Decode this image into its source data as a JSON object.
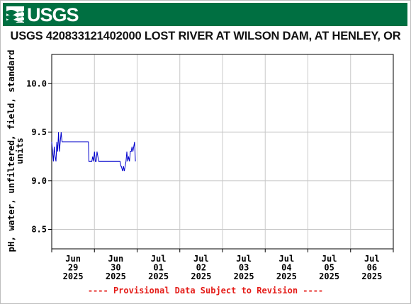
{
  "header": {
    "agency": "USGS",
    "logo_icon": "usgs-wave-logo-icon",
    "bg_color": "#006f41"
  },
  "chart_data": {
    "type": "line",
    "title": "USGS 420833121402000 LOST RIVER AT WILSON DAM, AT HENLEY, OR",
    "ylabel": "pH, water, unfiltered, field, standard units",
    "xlabel": "",
    "ylim": [
      8.3,
      10.3
    ],
    "yticks": [
      {
        "value": 8.5,
        "label": "8.5"
      },
      {
        "value": 9.0,
        "label": "9.0"
      },
      {
        "value": 9.5,
        "label": "9.5"
      },
      {
        "value": 10.0,
        "label": "10.0"
      }
    ],
    "xlim_days": [
      0,
      8
    ],
    "xticks": [
      {
        "day": 0.5,
        "month": "Jun",
        "date": "29",
        "year": "2025"
      },
      {
        "day": 1.5,
        "month": "Jun",
        "date": "30",
        "year": "2025"
      },
      {
        "day": 2.5,
        "month": "Jul",
        "date": "01",
        "year": "2025"
      },
      {
        "day": 3.5,
        "month": "Jul",
        "date": "02",
        "year": "2025"
      },
      {
        "day": 4.5,
        "month": "Jul",
        "date": "03",
        "year": "2025"
      },
      {
        "day": 5.5,
        "month": "Jul",
        "date": "04",
        "year": "2025"
      },
      {
        "day": 6.5,
        "month": "Jul",
        "date": "05",
        "year": "2025"
      },
      {
        "day": 7.5,
        "month": "Jul",
        "date": "06",
        "year": "2025"
      }
    ],
    "grid": true,
    "series": [
      {
        "color": "#0000cc",
        "x": [
          0.0,
          0.02,
          0.04,
          0.06,
          0.08,
          0.1,
          0.12,
          0.14,
          0.16,
          0.18,
          0.2,
          0.22,
          0.24,
          0.26,
          0.28,
          0.32,
          0.4,
          0.5,
          0.6,
          0.7,
          0.8,
          0.86,
          0.87,
          0.92,
          0.94,
          0.96,
          0.98,
          1.0,
          1.02,
          1.04,
          1.06,
          1.08,
          1.1,
          1.2,
          1.5,
          1.6,
          1.62,
          1.63,
          1.66,
          1.68,
          1.7,
          1.72,
          1.74,
          1.76,
          1.78,
          1.8,
          1.82,
          1.84,
          1.86,
          1.88,
          1.9,
          1.92,
          1.94,
          1.96
        ],
        "y": [
          9.4,
          9.3,
          9.2,
          9.35,
          9.25,
          9.2,
          9.4,
          9.3,
          9.5,
          9.3,
          9.4,
          9.5,
          9.4,
          9.4,
          9.4,
          9.4,
          9.4,
          9.4,
          9.4,
          9.4,
          9.4,
          9.4,
          9.2,
          9.2,
          9.2,
          9.25,
          9.2,
          9.3,
          9.2,
          9.2,
          9.3,
          9.25,
          9.2,
          9.2,
          9.2,
          9.2,
          9.15,
          9.15,
          9.1,
          9.15,
          9.1,
          9.15,
          9.2,
          9.3,
          9.2,
          9.25,
          9.2,
          9.3,
          9.3,
          9.35,
          9.3,
          9.35,
          9.4,
          9.2
        ]
      }
    ]
  },
  "footer": {
    "notice": "---- Provisional Data Subject to Revision ----"
  }
}
